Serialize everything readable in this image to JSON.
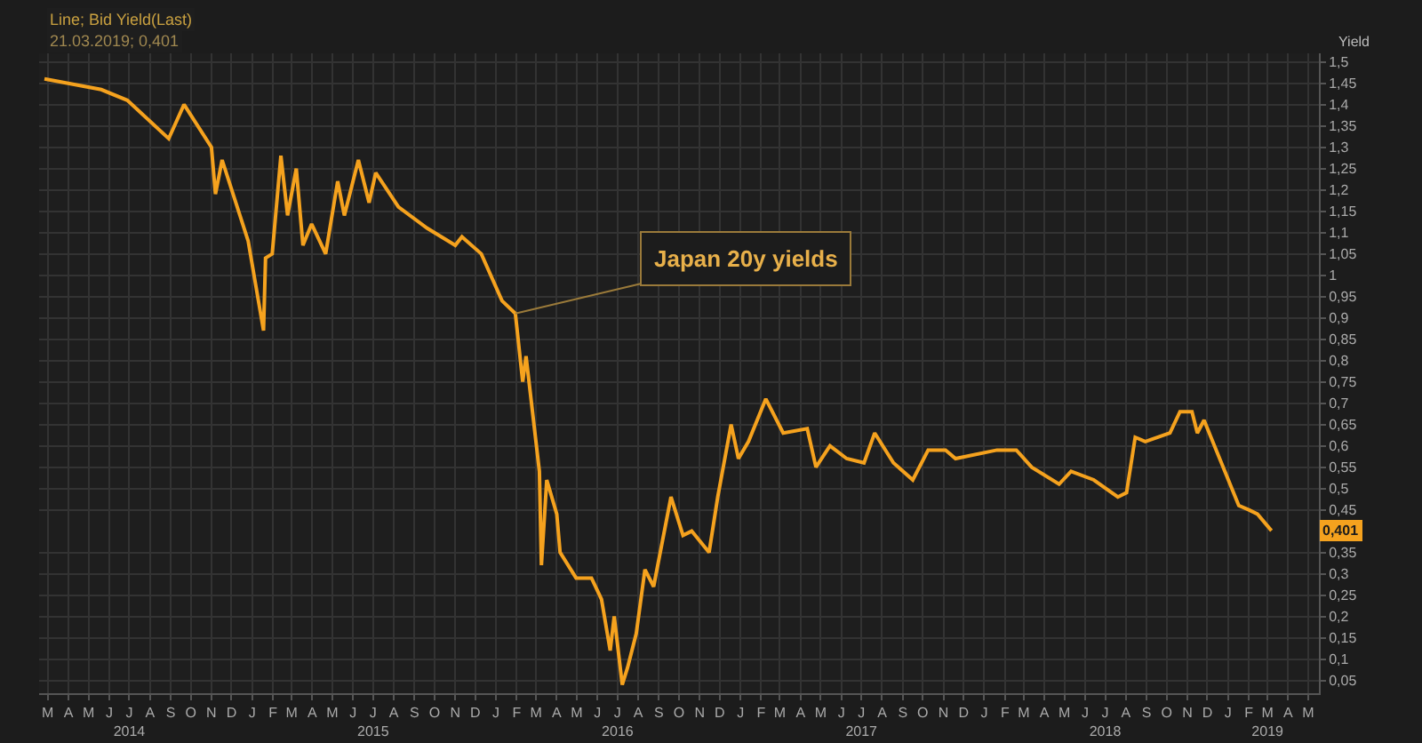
{
  "chart_data": {
    "type": "line",
    "title": "Line; Bid Yield(Last)",
    "subtitle": "21.03.2019; 0,401",
    "ylabel": "Yield",
    "x": [
      "2014-03-10",
      "2014-06-03",
      "2014-07-12",
      "2014-09-12",
      "2014-10-05",
      "2014-11-15",
      "2014-11-21",
      "2014-12-01",
      "2015-01-09",
      "2015-02-01",
      "2015-02-04",
      "2015-02-14",
      "2015-02-27",
      "2015-03-09",
      "2015-03-22",
      "2015-04-01",
      "2015-04-14",
      "2015-05-05",
      "2015-05-23",
      "2015-06-02",
      "2015-06-23",
      "2015-07-09",
      "2015-07-19",
      "2015-08-22",
      "2015-10-04",
      "2015-11-15",
      "2015-11-25",
      "2015-12-24",
      "2016-01-24",
      "2016-02-13",
      "2016-02-24",
      "2016-02-29",
      "2016-03-20",
      "2016-03-23",
      "2016-03-31",
      "2016-04-15",
      "2016-04-20",
      "2016-05-14",
      "2016-06-06",
      "2016-06-21",
      "2016-07-04",
      "2016-07-10",
      "2016-07-22",
      "2016-07-30",
      "2016-08-12",
      "2016-08-25",
      "2016-09-07",
      "2016-10-03",
      "2016-10-21",
      "2016-11-03",
      "2016-11-29",
      "2016-12-12",
      "2017-01-01",
      "2017-01-12",
      "2017-01-27",
      "2017-02-22",
      "2017-03-20",
      "2017-04-25",
      "2017-05-08",
      "2017-05-29",
      "2017-06-23",
      "2017-07-19",
      "2017-08-04",
      "2017-09-01",
      "2017-09-30",
      "2017-10-23",
      "2017-11-18",
      "2017-12-03",
      "2018-02-03",
      "2018-03-04",
      "2018-03-27",
      "2018-05-07",
      "2018-05-25",
      "2018-06-28",
      "2018-08-03",
      "2018-08-16",
      "2018-08-29",
      "2018-09-13",
      "2018-10-20",
      "2018-11-04",
      "2018-11-22",
      "2018-11-30",
      "2018-12-10",
      "2019-01-31",
      "2019-02-15",
      "2019-02-28",
      "2019-03-21"
    ],
    "series": [
      {
        "color": "#f5a21e",
        "values": [
          1.46,
          1.435,
          1.41,
          1.32,
          1.4,
          1.3,
          1.19,
          1.27,
          1.08,
          0.87,
          1.04,
          1.05,
          1.28,
          1.14,
          1.25,
          1.07,
          1.12,
          1.05,
          1.22,
          1.14,
          1.27,
          1.17,
          1.24,
          1.16,
          1.11,
          1.07,
          1.09,
          1.05,
          0.94,
          0.91,
          0.75,
          0.81,
          0.54,
          0.32,
          0.52,
          0.44,
          0.35,
          0.29,
          0.29,
          0.24,
          0.12,
          0.2,
          0.04,
          0.08,
          0.16,
          0.31,
          0.27,
          0.48,
          0.39,
          0.4,
          0.35,
          0.48,
          0.65,
          0.57,
          0.61,
          0.71,
          0.63,
          0.64,
          0.55,
          0.6,
          0.57,
          0.56,
          0.63,
          0.56,
          0.52,
          0.59,
          0.59,
          0.57,
          0.59,
          0.59,
          0.55,
          0.51,
          0.54,
          0.52,
          0.48,
          0.49,
          0.62,
          0.61,
          0.63,
          0.68,
          0.68,
          0.63,
          0.66,
          0.46,
          0.45,
          0.44,
          0.401
        ]
      }
    ],
    "annotations": [
      {
        "text": "Japan 20y yields",
        "x": "2016-02-13",
        "y": 0.91
      },
      {
        "text": "0,401",
        "y": 0.401
      }
    ],
    "xlim": [
      "2014-03-02",
      "2019-05-31"
    ],
    "xticks": [
      {
        "value": "2014-03-15",
        "label": "M"
      },
      {
        "value": "2014-04-15",
        "label": "A"
      },
      {
        "value": "2014-05-15",
        "label": "M"
      },
      {
        "value": "2014-06-15",
        "label": "J"
      },
      {
        "value": "2014-07-15",
        "label": "J\n2014"
      },
      {
        "value": "2014-08-15",
        "label": "A"
      },
      {
        "value": "2014-09-15",
        "label": "S"
      },
      {
        "value": "2014-10-15",
        "label": "O"
      },
      {
        "value": "2014-11-15",
        "label": "N"
      },
      {
        "value": "2014-12-15",
        "label": "D"
      },
      {
        "value": "2015-01-15",
        "label": "J"
      },
      {
        "value": "2015-02-15",
        "label": "F"
      },
      {
        "value": "2015-03-15",
        "label": "M"
      },
      {
        "value": "2015-04-15",
        "label": "A"
      },
      {
        "value": "2015-05-15",
        "label": "M"
      },
      {
        "value": "2015-06-15",
        "label": "J"
      },
      {
        "value": "2015-07-15",
        "label": "J\n2015"
      },
      {
        "value": "2015-08-15",
        "label": "A"
      },
      {
        "value": "2015-09-15",
        "label": "S"
      },
      {
        "value": "2015-10-15",
        "label": "O"
      },
      {
        "value": "2015-11-15",
        "label": "N"
      },
      {
        "value": "2015-12-15",
        "label": "D"
      },
      {
        "value": "2016-01-15",
        "label": "J"
      },
      {
        "value": "2016-02-15",
        "label": "F"
      },
      {
        "value": "2016-03-15",
        "label": "M"
      },
      {
        "value": "2016-04-15",
        "label": "A"
      },
      {
        "value": "2016-05-15",
        "label": "M"
      },
      {
        "value": "2016-06-15",
        "label": "J"
      },
      {
        "value": "2016-07-15",
        "label": "J\n2016"
      },
      {
        "value": "2016-08-15",
        "label": "A"
      },
      {
        "value": "2016-09-15",
        "label": "S"
      },
      {
        "value": "2016-10-15",
        "label": "O"
      },
      {
        "value": "2016-11-15",
        "label": "N"
      },
      {
        "value": "2016-12-15",
        "label": "D"
      },
      {
        "value": "2017-01-15",
        "label": "J"
      },
      {
        "value": "2017-02-15",
        "label": "F"
      },
      {
        "value": "2017-03-15",
        "label": "M"
      },
      {
        "value": "2017-04-15",
        "label": "A"
      },
      {
        "value": "2017-05-15",
        "label": "M"
      },
      {
        "value": "2017-06-15",
        "label": "J"
      },
      {
        "value": "2017-07-15",
        "label": "J\n2017"
      },
      {
        "value": "2017-08-15",
        "label": "A"
      },
      {
        "value": "2017-09-15",
        "label": "S"
      },
      {
        "value": "2017-10-15",
        "label": "O"
      },
      {
        "value": "2017-11-15",
        "label": "N"
      },
      {
        "value": "2017-12-15",
        "label": "D"
      },
      {
        "value": "2018-01-15",
        "label": "J"
      },
      {
        "value": "2018-02-15",
        "label": "F"
      },
      {
        "value": "2018-03-15",
        "label": "M"
      },
      {
        "value": "2018-04-15",
        "label": "A"
      },
      {
        "value": "2018-05-15",
        "label": "M"
      },
      {
        "value": "2018-06-15",
        "label": "J"
      },
      {
        "value": "2018-07-15",
        "label": "J\n2018"
      },
      {
        "value": "2018-08-15",
        "label": "A"
      },
      {
        "value": "2018-09-15",
        "label": "S"
      },
      {
        "value": "2018-10-15",
        "label": "O"
      },
      {
        "value": "2018-11-15",
        "label": "N"
      },
      {
        "value": "2018-12-15",
        "label": "D"
      },
      {
        "value": "2019-01-15",
        "label": "J"
      },
      {
        "value": "2019-02-15",
        "label": "F"
      },
      {
        "value": "2019-03-15",
        "label": "M\n2019"
      },
      {
        "value": "2019-04-15",
        "label": "A"
      },
      {
        "value": "2019-05-15",
        "label": "M"
      }
    ],
    "ylim": [
      0.02,
      1.52
    ],
    "yticks": [
      {
        "value": 0.05,
        "label": "0,05"
      },
      {
        "value": 0.1,
        "label": "0,1"
      },
      {
        "value": 0.15,
        "label": "0,15"
      },
      {
        "value": 0.2,
        "label": "0,2"
      },
      {
        "value": 0.25,
        "label": "0,25"
      },
      {
        "value": 0.3,
        "label": "0,3"
      },
      {
        "value": 0.35,
        "label": "0,35"
      },
      {
        "value": 0.45,
        "label": "0,45"
      },
      {
        "value": 0.5,
        "label": "0,5"
      },
      {
        "value": 0.55,
        "label": "0,55"
      },
      {
        "value": 0.6,
        "label": "0,6"
      },
      {
        "value": 0.65,
        "label": "0,65"
      },
      {
        "value": 0.7,
        "label": "0,7"
      },
      {
        "value": 0.75,
        "label": "0,75"
      },
      {
        "value": 0.8,
        "label": "0,8"
      },
      {
        "value": 0.85,
        "label": "0,85"
      },
      {
        "value": 0.9,
        "label": "0,9"
      },
      {
        "value": 0.95,
        "label": "0,95"
      },
      1,
      {
        "value": 1.05,
        "label": "1,05"
      },
      {
        "value": 1.1,
        "label": "1,1"
      },
      {
        "value": 1.15,
        "label": "1,15"
      },
      {
        "value": 1.2,
        "label": "1,2"
      },
      {
        "value": 1.25,
        "label": "1,25"
      },
      {
        "value": 1.3,
        "label": "1,3"
      },
      {
        "value": 1.35,
        "label": "1,35"
      },
      {
        "value": 1.4,
        "label": "1,4"
      },
      {
        "value": 1.45,
        "label": "1,45"
      },
      {
        "value": 1.5,
        "label": "1,5"
      }
    ],
    "grid": true
  }
}
